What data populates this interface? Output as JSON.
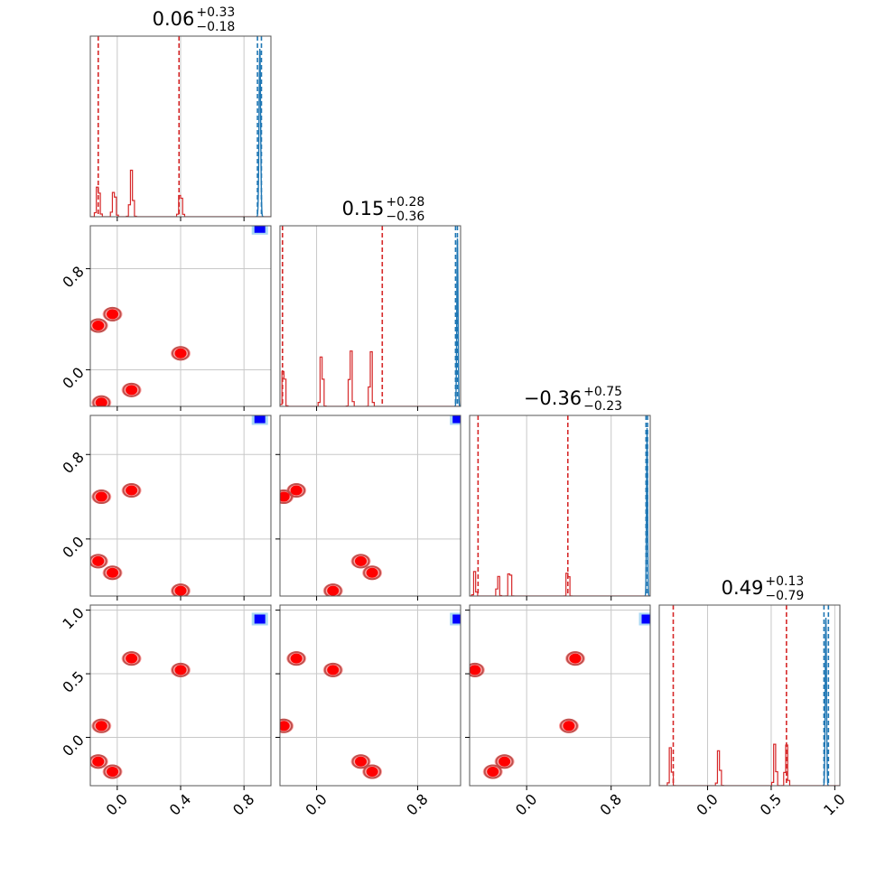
{
  "chart_data": {
    "type": "corner",
    "grid": true,
    "titles": [
      {
        "value": "0.06",
        "plus": "+0.33",
        "minus": "−0.18"
      },
      {
        "value": "0.15",
        "plus": "+0.28",
        "minus": "−0.36"
      },
      {
        "value": "−0.36",
        "plus": "+0.75",
        "minus": "−0.23"
      },
      {
        "value": "0.49",
        "plus": "+0.13",
        "minus": "−0.79"
      }
    ],
    "axis_ranges": [
      [
        -0.17,
        0.97
      ],
      [
        -0.29,
        1.14
      ],
      [
        -0.54,
        1.17
      ],
      [
        -0.38,
        1.04
      ]
    ],
    "ticks": [
      {
        "values": [
          0.0,
          0.4,
          0.8
        ],
        "labels": [
          "0.0",
          "0.4",
          "0.8"
        ]
      },
      {
        "values": [
          0.0,
          0.8
        ],
        "labels": [
          "0.0",
          "0.8"
        ]
      },
      {
        "values": [
          0.0,
          0.8
        ],
        "labels": [
          "0.0",
          "0.8"
        ]
      },
      {
        "values": [
          0.0,
          0.5,
          1.0
        ],
        "labels": [
          "0.0",
          "0.5",
          "1.0"
        ]
      }
    ],
    "colors": {
      "red": "#d62728",
      "blue": "#1f77b4",
      "blue_points": "#0000ff",
      "red_points": "#ff0000"
    },
    "series": [
      {
        "color": "red",
        "quantiles": [
          [
            -0.12,
            0.39
          ],
          [
            -0.27,
            0.52
          ],
          [
            -0.46,
            0.39
          ],
          [
            -0.27,
            0.62
          ]
        ]
      },
      {
        "color": "blue",
        "quantiles": [
          [
            0.885,
            0.91
          ],
          [
            1.1,
            1.115
          ],
          [
            1.13,
            1.145
          ],
          [
            0.915,
            0.95
          ]
        ]
      }
    ],
    "red_clusters": [
      [
        -0.12,
        0.35,
        -0.21,
        -0.19
      ],
      [
        -0.03,
        0.44,
        -0.32,
        -0.27
      ],
      [
        0.09,
        -0.16,
        0.46,
        0.62
      ],
      [
        0.4,
        0.13,
        -0.49,
        0.53
      ],
      [
        -0.1,
        -0.26,
        0.4,
        0.09
      ]
    ],
    "blue_point": [
      0.9,
      1.12,
      1.14,
      0.93
    ],
    "marginal_peaks": [
      [
        [
          -0.12,
          0.2
        ],
        [
          -0.02,
          0.17
        ],
        [
          0.09,
          0.23
        ],
        [
          0.4,
          0.15
        ]
      ],
      [
        [
          -0.26,
          0.28
        ],
        [
          0.04,
          0.35
        ],
        [
          0.27,
          0.38
        ],
        [
          0.43,
          0.3
        ]
      ],
      [
        [
          -0.49,
          0.15
        ],
        [
          -0.27,
          0.14
        ],
        [
          -0.16,
          0.2
        ],
        [
          0.39,
          0.2
        ]
      ],
      [
        [
          -0.29,
          0.2
        ],
        [
          0.09,
          0.22
        ],
        [
          0.53,
          0.22
        ],
        [
          0.62,
          0.25
        ]
      ]
    ],
    "blue_peaks": [
      0.9,
      1.115,
      1.14,
      0.93
    ]
  }
}
